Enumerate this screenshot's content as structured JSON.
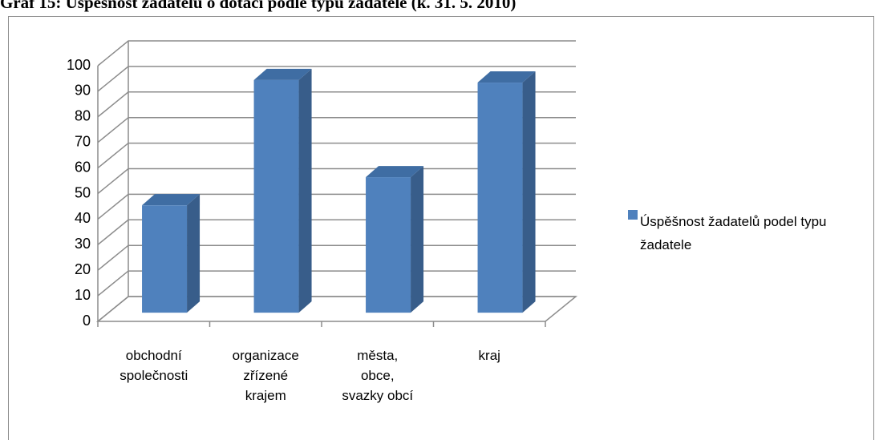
{
  "chart_data": {
    "type": "bar3d",
    "title": "Graf 15: Úspěšnost žadatelů o dotaci podle typu žadatele (k. 31. 5. 2010)",
    "categories": [
      "obchodní\nspolečnosti",
      "organizace\nzřízené\nkrajem",
      "města,\nobce,\nsvazky obcí",
      "kraj"
    ],
    "series": [
      {
        "name": "Úspěšnost žadatelů podel typu žadatele",
        "color": "#4f81bd",
        "values": [
          42,
          91,
          53,
          90
        ]
      }
    ],
    "ylim": [
      0,
      100
    ],
    "yticks": [
      0,
      10,
      20,
      30,
      40,
      50,
      60,
      70,
      80,
      90,
      100
    ],
    "grid": true,
    "legend": "right"
  }
}
